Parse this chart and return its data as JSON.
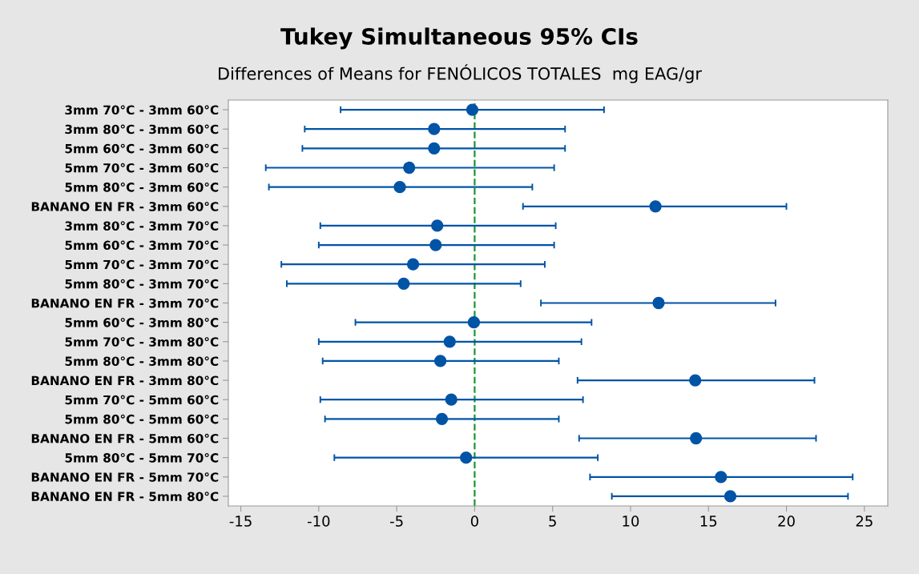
{
  "chart_data": {
    "type": "scatter",
    "orientation": "horizontal",
    "title": "Tukey Simultaneous 95% CIs",
    "subtitle": "Differences of Means for FENÓLICOS TOTALES  mg EAG/gr",
    "categories": [
      "3mm 70°C - 3mm 60°C",
      "3mm 80°C - 3mm 60°C",
      "5mm 60°C - 3mm 60°C",
      "5mm 70°C - 3mm 60°C",
      "5mm 80°C - 3mm 60°C",
      "BANANO EN FR - 3mm 60°C",
      "3mm 80°C - 3mm 70°C",
      "5mm 60°C - 3mm 70°C",
      "5mm 70°C - 3mm 70°C",
      "5mm 80°C - 3mm 70°C",
      "BANANO EN FR - 3mm 70°C",
      "5mm 60°C - 3mm 80°C",
      "5mm 70°C - 3mm 80°C",
      "5mm 80°C - 3mm 80°C",
      "BANANO EN FR - 3mm 80°C",
      "5mm 70°C - 5mm 60°C",
      "5mm 80°C - 5mm 60°C",
      "BANANO EN FR - 5mm 60°C",
      "5mm 80°C - 5mm 70°C",
      "BANANO EN FR - 5mm 70°C",
      "BANANO EN FR - 5mm 80°C"
    ],
    "values": [
      -0.15,
      -2.6,
      -2.6,
      -4.2,
      -4.8,
      11.6,
      -2.4,
      -2.5,
      -3.95,
      -4.55,
      11.8,
      -0.05,
      -1.6,
      -2.2,
      14.15,
      -1.5,
      -2.1,
      14.2,
      -0.55,
      15.8,
      16.4
    ],
    "errors": [
      [
        -8.6,
        8.3
      ],
      [
        -10.9,
        5.8
      ],
      [
        -11.05,
        5.8
      ],
      [
        -13.4,
        5.1
      ],
      [
        -13.2,
        3.7
      ],
      [
        3.1,
        20.0
      ],
      [
        -9.9,
        5.2
      ],
      [
        -10.0,
        5.1
      ],
      [
        -12.4,
        4.5
      ],
      [
        -12.05,
        2.95
      ],
      [
        4.25,
        19.3
      ],
      [
        -7.65,
        7.5
      ],
      [
        -10.0,
        6.85
      ],
      [
        -9.75,
        5.4
      ],
      [
        6.6,
        21.8
      ],
      [
        -9.9,
        6.95
      ],
      [
        -9.6,
        5.4
      ],
      [
        6.7,
        21.9
      ],
      [
        -9.0,
        7.9
      ],
      [
        7.4,
        24.25
      ],
      [
        8.8,
        23.95
      ]
    ],
    "color": "#0054a6",
    "marker": "circle",
    "xlim": [
      -15.8,
      26.5
    ],
    "xticks": [
      -15,
      -10,
      -5,
      0,
      5,
      10,
      15,
      20,
      25
    ],
    "ref_lines": [
      {
        "axis": "x",
        "value": 0,
        "color": "#1a9632",
        "line_style": "dashed"
      }
    ],
    "grid": false
  }
}
